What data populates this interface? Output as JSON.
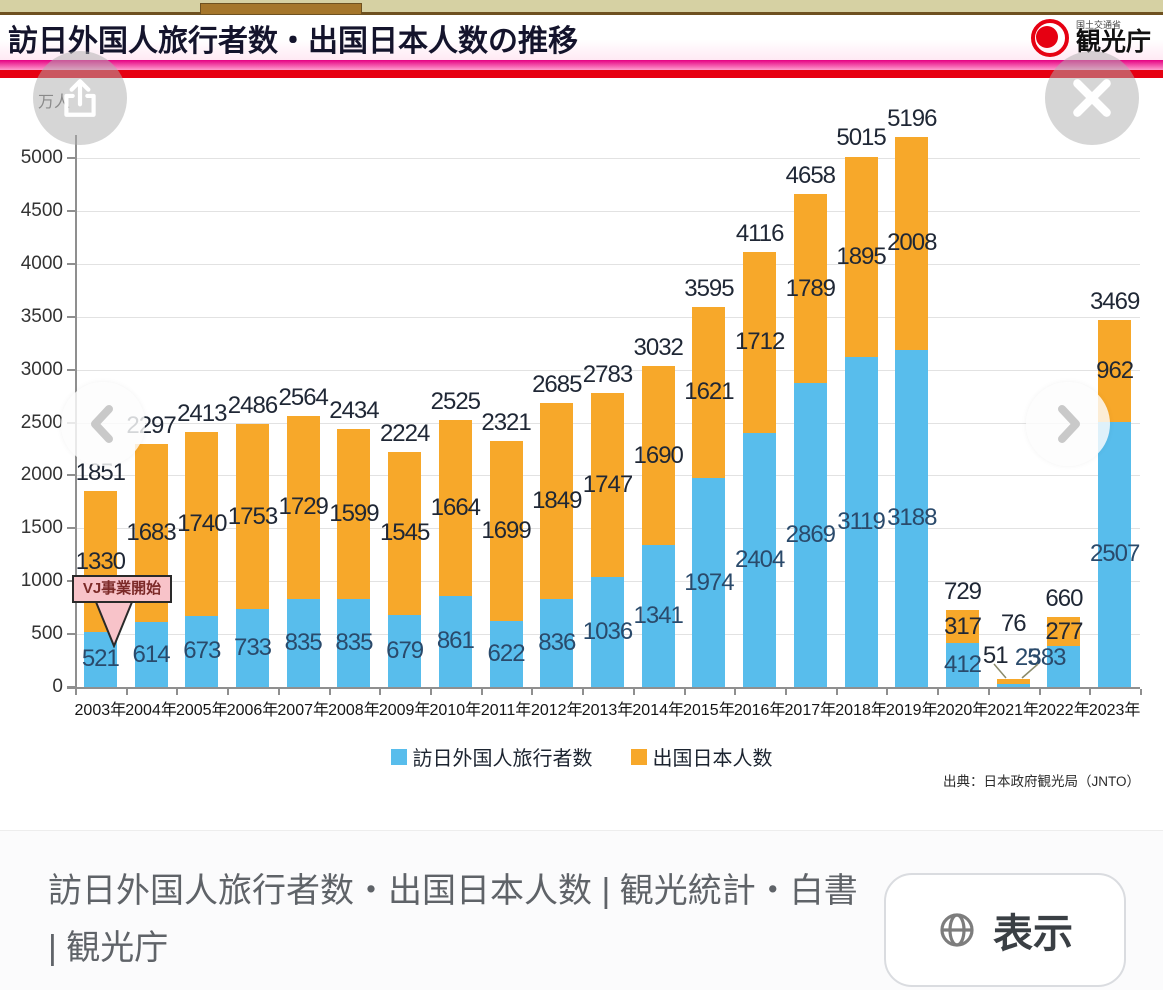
{
  "header": {
    "title": "訪日外国人旅行者数・出国日本人数の推移",
    "logo": {
      "ministry": "国土交通省",
      "agency": "観光庁"
    },
    "colors": {
      "stripe_magenta": "#e50082",
      "stripe_red": "#e60012",
      "logo_red": "#e60012"
    }
  },
  "chart_data": {
    "type": "bar",
    "stacked": true,
    "unit": "万人",
    "categories": [
      "2003年",
      "2004年",
      "2005年",
      "2006年",
      "2007年",
      "2008年",
      "2009年",
      "2010年",
      "2011年",
      "2012年",
      "2013年",
      "2014年",
      "2015年",
      "2016年",
      "2017年",
      "2018年",
      "2019年",
      "2020年",
      "2021年",
      "2022年",
      "2023年"
    ],
    "series": [
      {
        "name": "訪日外国人旅行者数",
        "color": "#58bdec",
        "values": [
          521,
          614,
          673,
          733,
          835,
          835,
          679,
          861,
          622,
          836,
          1036,
          1341,
          1974,
          2404,
          2869,
          3119,
          3188,
          412,
          25,
          383,
          2507
        ]
      },
      {
        "name": "出国日本人数",
        "color": "#f7a82a",
        "values": [
          1330,
          1683,
          1740,
          1753,
          1729,
          1599,
          1545,
          1664,
          1699,
          1849,
          1747,
          1690,
          1621,
          1712,
          1789,
          1895,
          2008,
          317,
          51,
          277,
          962
        ]
      }
    ],
    "totals": [
      1851,
      2297,
      2413,
      2486,
      2564,
      2434,
      2224,
      2525,
      2321,
      2685,
      2783,
      3032,
      3595,
      4116,
      4658,
      5015,
      5196,
      729,
      76,
      660,
      3469
    ],
    "yticks": [
      0,
      500,
      1000,
      1500,
      2000,
      2500,
      3000,
      3500,
      4000,
      4500,
      5000
    ],
    "ylim": [
      0,
      5000
    ],
    "grid": true,
    "legend_position": "bottom",
    "annotation": {
      "label": "VJ事業開始",
      "target_category": "2003年"
    },
    "source": "出典：日本政府観光局（JNTO）"
  },
  "footer": {
    "title": "訪日外国人旅行者数・出国日本人数 | 観光統計・白書 | 観光庁",
    "view_button": "表示"
  }
}
